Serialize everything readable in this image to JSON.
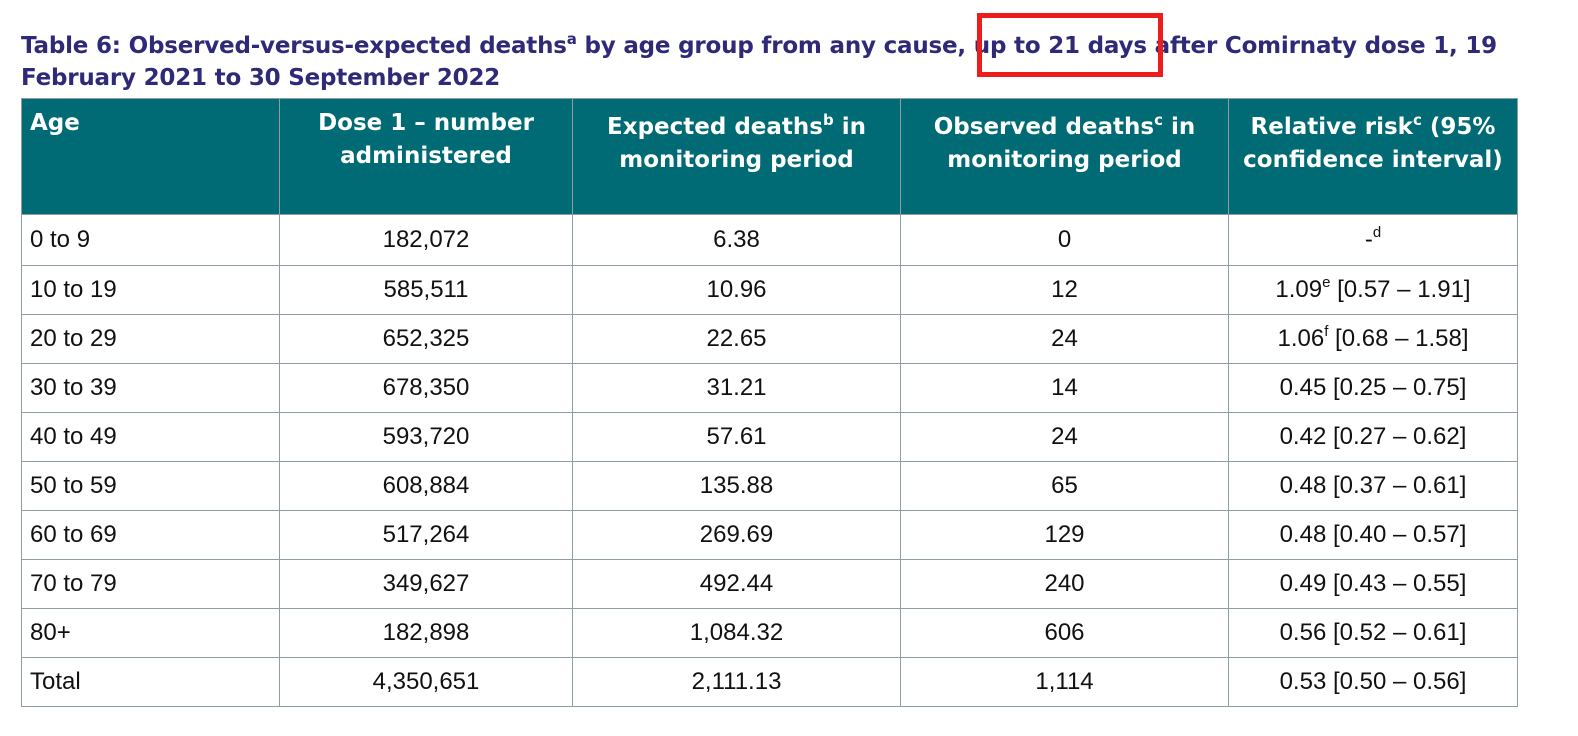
{
  "caption": {
    "part1": "Table 6: Observed-versus-expected deaths",
    "sup_a": "a",
    "part2": " by age group from any cause, ",
    "highlighted": "up to 21 days",
    "part3": " after Comirnaty dose 1, 19 February 2021 to 30 September 2022"
  },
  "highlight_color": "#ee1c1c",
  "header_color": "#006b74",
  "table": {
    "headers": {
      "age": "Age",
      "dose1": "Dose 1 – number administered",
      "expected": "Expected deaths",
      "expected_sup": "b",
      "expected_tail": " in monitoring period",
      "observed": "Observed deaths",
      "observed_sup": "c",
      "observed_tail": " in monitoring period",
      "rr": "Relative risk",
      "rr_sup": "c",
      "rr_tail": " (95% confidence interval)"
    },
    "rows": [
      {
        "age": "0 to 9",
        "dose1": "182,072",
        "expected": "6.38",
        "observed": "0",
        "rr_value": "-",
        "rr_sup": "d",
        "rr_ci": ""
      },
      {
        "age": "10 to 19",
        "dose1": "585,511",
        "expected": "10.96",
        "observed": "12",
        "rr_value": "1.09",
        "rr_sup": "e",
        "rr_ci": " [0.57 – 1.91]"
      },
      {
        "age": "20 to 29",
        "dose1": "652,325",
        "expected": "22.65",
        "observed": "24",
        "rr_value": "1.06",
        "rr_sup": "f",
        "rr_ci": " [0.68 – 1.58]"
      },
      {
        "age": "30 to 39",
        "dose1": "678,350",
        "expected": "31.21",
        "observed": "14",
        "rr_value": "0.45",
        "rr_sup": "",
        "rr_ci": " [0.25 – 0.75]"
      },
      {
        "age": "40 to 49",
        "dose1": "593,720",
        "expected": "57.61",
        "observed": "24",
        "rr_value": "0.42",
        "rr_sup": "",
        "rr_ci": " [0.27 – 0.62]"
      },
      {
        "age": "50 to 59",
        "dose1": "608,884",
        "expected": "135.88",
        "observed": "65",
        "rr_value": "0.48",
        "rr_sup": "",
        "rr_ci": " [0.37 – 0.61]"
      },
      {
        "age": "60 to 69",
        "dose1": "517,264",
        "expected": "269.69",
        "observed": "129",
        "rr_value": "0.48",
        "rr_sup": "",
        "rr_ci": " [0.40 – 0.57]"
      },
      {
        "age": "70 to 79",
        "dose1": "349,627",
        "expected": "492.44",
        "observed": "240",
        "rr_value": "0.49",
        "rr_sup": "",
        "rr_ci": " [0.43 – 0.55]"
      },
      {
        "age": "80+",
        "dose1": "182,898",
        "expected": "1,084.32",
        "observed": "606",
        "rr_value": "0.56",
        "rr_sup": "",
        "rr_ci": " [0.52 – 0.61]"
      },
      {
        "age": "Total",
        "dose1": "4,350,651",
        "expected": "2,111.13",
        "observed": "1,114",
        "rr_value": "0.53",
        "rr_sup": "",
        "rr_ci": " [0.50 – 0.56]"
      }
    ]
  }
}
